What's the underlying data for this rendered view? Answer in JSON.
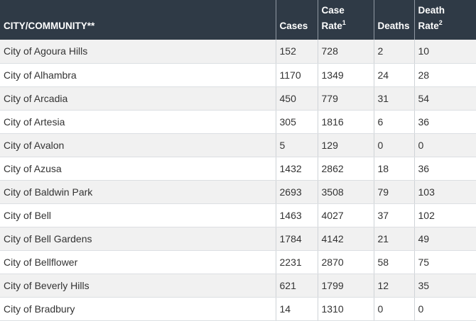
{
  "table": {
    "headers": {
      "city": "CITY/COMMUNITY**",
      "cases": "Cases",
      "case_rate_line1": "Case",
      "case_rate_line2": "Rate",
      "case_rate_sup": "1",
      "deaths": "Deaths",
      "death_rate_line1": "Death",
      "death_rate_line2": "Rate",
      "death_rate_sup": "2"
    },
    "rows": [
      {
        "city": "City of Agoura Hills",
        "cases": "152",
        "case_rate": "728",
        "deaths": "2",
        "death_rate": "10"
      },
      {
        "city": "City of Alhambra",
        "cases": "1170",
        "case_rate": "1349",
        "deaths": "24",
        "death_rate": "28"
      },
      {
        "city": "City of Arcadia",
        "cases": "450",
        "case_rate": "779",
        "deaths": "31",
        "death_rate": "54"
      },
      {
        "city": "City of Artesia",
        "cases": "305",
        "case_rate": "1816",
        "deaths": "6",
        "death_rate": "36"
      },
      {
        "city": "City of Avalon",
        "cases": "5",
        "case_rate": "129",
        "deaths": "0",
        "death_rate": "0"
      },
      {
        "city": "City of Azusa",
        "cases": "1432",
        "case_rate": "2862",
        "deaths": "18",
        "death_rate": "36"
      },
      {
        "city": "City of Baldwin Park",
        "cases": "2693",
        "case_rate": "3508",
        "deaths": "79",
        "death_rate": "103"
      },
      {
        "city": "City of Bell",
        "cases": "1463",
        "case_rate": "4027",
        "deaths": "37",
        "death_rate": "102"
      },
      {
        "city": "City of Bell Gardens",
        "cases": "1784",
        "case_rate": "4142",
        "deaths": "21",
        "death_rate": "49"
      },
      {
        "city": "City of Bellflower",
        "cases": "2231",
        "case_rate": "2870",
        "deaths": "58",
        "death_rate": "75"
      },
      {
        "city": "City of Beverly Hills",
        "cases": "621",
        "case_rate": "1799",
        "deaths": "12",
        "death_rate": "35"
      },
      {
        "city": "City of Bradbury",
        "cases": "14",
        "case_rate": "1310",
        "deaths": "0",
        "death_rate": "0"
      }
    ]
  }
}
